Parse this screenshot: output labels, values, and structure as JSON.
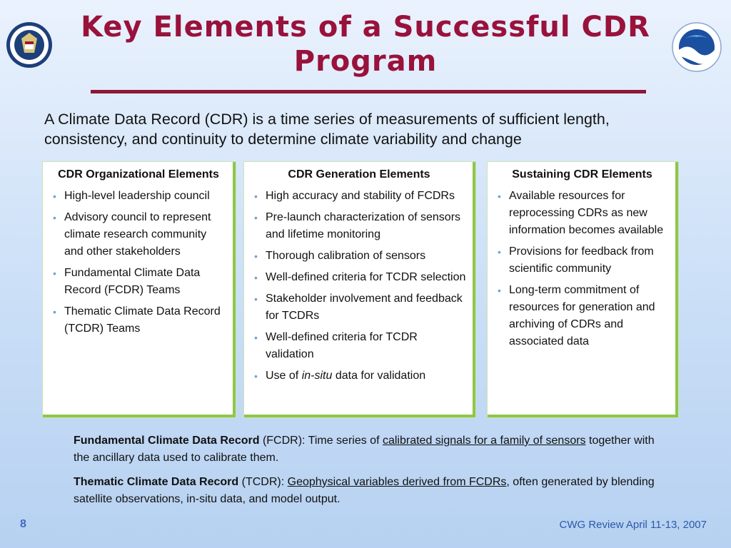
{
  "title": "Key Elements of a Successful CDR Program",
  "logos": {
    "left": "doc-seal-icon",
    "right": "noaa-logo-icon"
  },
  "intro": "A Climate Data Record (CDR) is a time series of measurements of sufficient length, consistency, and continuity to determine climate variability and change",
  "cards": [
    {
      "heading": "CDR Organizational Elements",
      "items": [
        "High-level leadership council",
        "Advisory council to represent climate research community and other stakeholders",
        "Fundamental Climate Data Record (FCDR) Teams",
        "Thematic Climate Data Record (TCDR) Teams"
      ]
    },
    {
      "heading": "CDR Generation Elements",
      "items": [
        "High accuracy and stability of FCDRs",
        "Pre-launch characterization of sensors and lifetime monitoring",
        "Thorough calibration of sensors",
        "Well-defined criteria for TCDR selection",
        "Stakeholder involvement and feedback for TCDRs",
        "Well-defined criteria for TCDR validation"
      ],
      "last_item": {
        "before": "Use of ",
        "italic": "in-situ",
        "after": " data for validation"
      }
    },
    {
      "heading": "Sustaining CDR Elements",
      "items": [
        "Available resources for reprocessing CDRs as new information becomes available",
        "Provisions for feedback from scientific community",
        "Long-term commitment of resources for generation and archiving of CDRs and associated data"
      ]
    }
  ],
  "definitions": {
    "fcdr": {
      "term": "Fundamental Climate Data Record",
      "abbr": " (FCDR): Time series of ",
      "underlined": "calibrated signals for a family of sensors",
      "rest": " together with the ancillary data used to calibrate them."
    },
    "tcdr": {
      "term": "Thematic Climate Data Record",
      "abbr": " (TCDR):  ",
      "underlined": "Geophysical variables derived from FCDRs",
      "rest": ", often generated by blending satellite observations, in-situ data, and model output."
    }
  },
  "footer": {
    "page": "8",
    "text": "CWG Review April 11-13, 2007"
  },
  "colors": {
    "title": "#99123b",
    "rule": "#8c1836",
    "card_border": "#8ec64c",
    "bullet": "#6fa3d8"
  }
}
